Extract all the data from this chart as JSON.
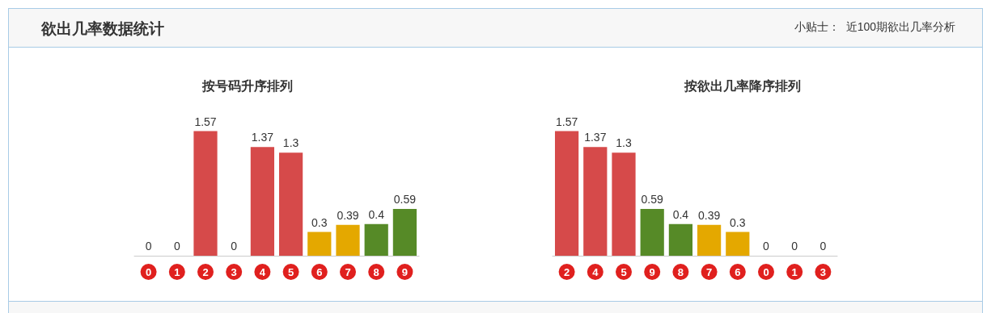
{
  "chart_data": [
    {
      "type": "other",
      "title": "欲出几率数据统计",
      "annotations": [
        "小贴士：  近100期欲出几率分析"
      ]
    },
    {
      "type": "bar",
      "title": "按号码升序排列",
      "categories": [
        "0",
        "1",
        "2",
        "3",
        "4",
        "5",
        "6",
        "7",
        "8",
        "9"
      ],
      "values": [
        0,
        0,
        1.57,
        0,
        1.37,
        1.3,
        0.3,
        0.39,
        0.4,
        0.59
      ],
      "colors": [
        "#d64a4a",
        "#d64a4a",
        "#d64a4a",
        "#d64a4a",
        "#d64a4a",
        "#d64a4a",
        "#e4a800",
        "#e4a800",
        "#568a27",
        "#568a27"
      ],
      "data_labels": true
    },
    {
      "type": "bar",
      "title": "按欲出几率降序排列",
      "categories": [
        "2",
        "4",
        "5",
        "9",
        "8",
        "7",
        "6",
        "0",
        "1",
        "3"
      ],
      "values": [
        1.57,
        1.37,
        1.3,
        0.59,
        0.4,
        0.39,
        0.3,
        0,
        0,
        0
      ],
      "colors": [
        "#d64a4a",
        "#d64a4a",
        "#d64a4a",
        "#568a27",
        "#568a27",
        "#e4a800",
        "#e4a800",
        "#d64a4a",
        "#d64a4a",
        "#d64a4a"
      ],
      "data_labels": true
    }
  ]
}
